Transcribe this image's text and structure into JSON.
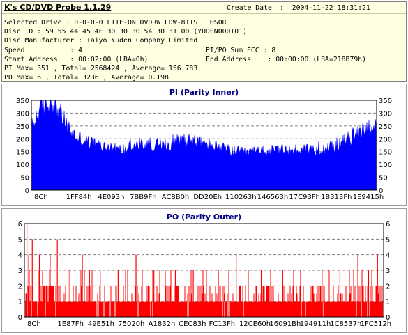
{
  "app": {
    "title": "K's CD/DVD Probe 1.1.29"
  },
  "info": {
    "create_date_label": "Create Date",
    "create_date": ":  2004-11-22 18:31:21",
    "selected_drive": "Selected Drive : 0-0-0-0 LITE-ON DVDRW LDW-811S   HS0R",
    "disc_id": "Disc ID : 59 55 44 45 4E 30 30 30 54 30 31 00 (YUDEN000T01)",
    "disc_manufacturer": "Disc Manufacturer : Taiyo Yuden Company Limited",
    "speed": "Speed           : 4",
    "sum_ecc": "PI/PO Sum ECC : 8",
    "start_address": "Start Address   : 00:02:00 (LBA=0h)",
    "end_address": "End Address    : 00:00:00 (LBA=218B79h)",
    "pi_stats": "PI Max= 351 , Total= 2568424 , Average= 156.783",
    "po_stats": "PO Max= 6 , Total= 3236 , Average= 0.198"
  },
  "chart_data": [
    {
      "type": "bar",
      "title": "PI (Parity Inner)",
      "color": "#0000ff",
      "ylim": [
        0,
        350
      ],
      "yticks": [
        0,
        50,
        100,
        150,
        200,
        250,
        300,
        350
      ],
      "grid": true,
      "x_tick_labels": [
        "8Ch",
        "1FF84h",
        "4E093h",
        "7BB9Fh",
        "AC8B0h",
        "DD20Eh",
        "110263h",
        "146563h",
        "17C93Fh",
        "1B313Fh",
        "1E9415h"
      ],
      "x": [
        0.0,
        0.02,
        0.04,
        0.06,
        0.08,
        0.1,
        0.12,
        0.14,
        0.16,
        0.18,
        0.2,
        0.22,
        0.24,
        0.26,
        0.28,
        0.3,
        0.32,
        0.34,
        0.36,
        0.38,
        0.4,
        0.42,
        0.44,
        0.46,
        0.48,
        0.5,
        0.52,
        0.54,
        0.56,
        0.58,
        0.6,
        0.62,
        0.64,
        0.66,
        0.68,
        0.7,
        0.72,
        0.74,
        0.76,
        0.78,
        0.8,
        0.82,
        0.84,
        0.86,
        0.88,
        0.9,
        0.92,
        0.94,
        0.96,
        0.98,
        1.0
      ],
      "values": [
        245,
        305,
        335,
        340,
        300,
        250,
        215,
        200,
        188,
        180,
        172,
        165,
        160,
        155,
        162,
        170,
        175,
        180,
        175,
        168,
        178,
        190,
        200,
        195,
        185,
        180,
        175,
        165,
        158,
        152,
        148,
        145,
        147,
        150,
        148,
        152,
        155,
        150,
        155,
        158,
        160,
        158,
        160,
        165,
        172,
        185,
        200,
        215,
        230,
        245,
        258
      ],
      "max": 351
    },
    {
      "type": "bar",
      "title": "PO (Parity Outer)",
      "color": "#ff0000",
      "ylim": [
        0,
        6
      ],
      "yticks": [
        0,
        1,
        2,
        3,
        4,
        5,
        6
      ],
      "grid": true,
      "x_tick_labels": [
        "8Ch",
        "1E87Fh",
        "49E51h",
        "75020h",
        "A1832h",
        "CEC83h",
        "FC13Fh",
        "12CE60h",
        "16091Bh",
        "194911h",
        "1C8537h",
        "1FC512h"
      ],
      "max": 6,
      "spikes": [
        [
          0.005,
          6
        ],
        [
          0.01,
          4
        ],
        [
          0.02,
          5
        ],
        [
          0.04,
          4
        ],
        [
          0.07,
          4
        ],
        [
          0.09,
          5
        ],
        [
          0.12,
          3
        ],
        [
          0.16,
          4
        ],
        [
          0.18,
          3
        ],
        [
          0.21,
          3
        ],
        [
          0.26,
          3
        ],
        [
          0.31,
          4
        ],
        [
          0.36,
          3
        ],
        [
          0.42,
          3
        ],
        [
          0.47,
          3
        ],
        [
          0.54,
          3
        ],
        [
          0.59,
          4
        ],
        [
          0.66,
          3
        ],
        [
          0.72,
          3
        ],
        [
          0.77,
          3
        ],
        [
          0.83,
          3
        ],
        [
          0.88,
          3
        ],
        [
          0.93,
          4
        ],
        [
          0.96,
          3
        ],
        [
          0.985,
          4
        ]
      ]
    }
  ]
}
